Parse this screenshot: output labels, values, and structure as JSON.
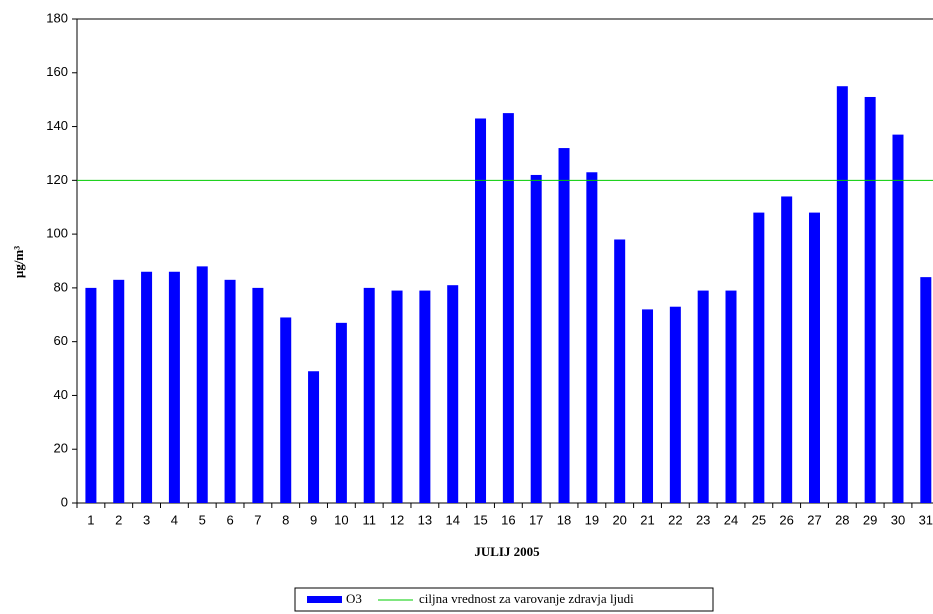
{
  "chart_data": {
    "type": "bar",
    "x_label": "JULIJ 2005",
    "y_label": "µg/m³",
    "categories": [
      "1",
      "2",
      "3",
      "4",
      "5",
      "6",
      "7",
      "8",
      "9",
      "10",
      "11",
      "12",
      "13",
      "14",
      "15",
      "16",
      "17",
      "18",
      "19",
      "20",
      "21",
      "22",
      "23",
      "24",
      "25",
      "26",
      "27",
      "28",
      "29",
      "30",
      "31"
    ],
    "series": [
      {
        "name": "O3",
        "color": "#0000ff",
        "values": [
          80,
          83,
          86,
          86,
          88,
          83,
          80,
          69,
          49,
          67,
          80,
          79,
          79,
          81,
          143,
          145,
          122,
          132,
          123,
          98,
          72,
          73,
          79,
          79,
          108,
          114,
          108,
          155,
          151,
          137,
          84
        ]
      }
    ],
    "reference_line": {
      "name": "ciljna vrednost za varovanje zdravja ljudi",
      "value": 120,
      "color": "#00cc00"
    },
    "ylim": [
      0,
      180
    ],
    "yticks": [
      0,
      20,
      40,
      60,
      80,
      100,
      120,
      140,
      160,
      180
    ]
  }
}
